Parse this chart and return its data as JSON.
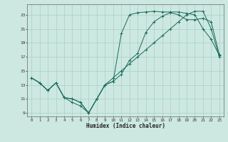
{
  "xlabel": "Humidex (Indice chaleur)",
  "bg_color": "#cce8e0",
  "grid_color": "#aacfc8",
  "line_color": "#1a6b5a",
  "xlim": [
    -0.5,
    23.5
  ],
  "ylim": [
    8.5,
    24.5
  ],
  "xticks": [
    0,
    1,
    2,
    3,
    4,
    5,
    6,
    7,
    8,
    9,
    10,
    11,
    12,
    13,
    14,
    15,
    16,
    17,
    18,
    19,
    20,
    21,
    22,
    23
  ],
  "yticks": [
    9,
    11,
    13,
    15,
    17,
    19,
    21,
    23
  ],
  "line1_x": [
    0,
    1,
    2,
    3,
    4,
    5,
    6,
    7,
    8,
    9,
    10,
    11,
    12,
    13,
    14,
    15,
    16,
    17,
    18,
    19,
    20,
    21,
    22,
    23
  ],
  "line1_y": [
    14.0,
    13.3,
    12.2,
    13.3,
    11.2,
    11.0,
    10.5,
    9.0,
    11.0,
    13.0,
    13.5,
    20.3,
    23.0,
    23.3,
    23.4,
    23.5,
    23.4,
    23.4,
    23.4,
    23.2,
    23.0,
    21.0,
    19.5,
    17.2
  ],
  "line2_x": [
    0,
    1,
    2,
    3,
    4,
    5,
    6,
    7,
    8,
    9,
    10,
    11,
    12,
    13,
    14,
    15,
    16,
    17,
    18,
    19,
    20,
    21,
    22,
    23
  ],
  "line2_y": [
    14.0,
    13.3,
    12.2,
    13.3,
    11.2,
    10.5,
    10.0,
    9.0,
    11.0,
    13.0,
    13.5,
    14.5,
    16.5,
    17.5,
    20.5,
    22.0,
    22.8,
    23.3,
    23.0,
    22.3,
    22.3,
    22.5,
    22.0,
    17.3
  ],
  "line3_x": [
    0,
    1,
    2,
    3,
    4,
    5,
    6,
    7,
    8,
    9,
    10,
    11,
    12,
    13,
    14,
    15,
    16,
    17,
    18,
    19,
    20,
    21,
    22,
    23
  ],
  "line3_y": [
    14.0,
    13.3,
    12.2,
    13.3,
    11.2,
    11.0,
    10.5,
    9.0,
    11.0,
    13.0,
    14.0,
    15.0,
    16.0,
    17.0,
    18.0,
    19.0,
    20.0,
    21.0,
    22.0,
    23.0,
    23.5,
    23.5,
    21.0,
    17.0
  ]
}
